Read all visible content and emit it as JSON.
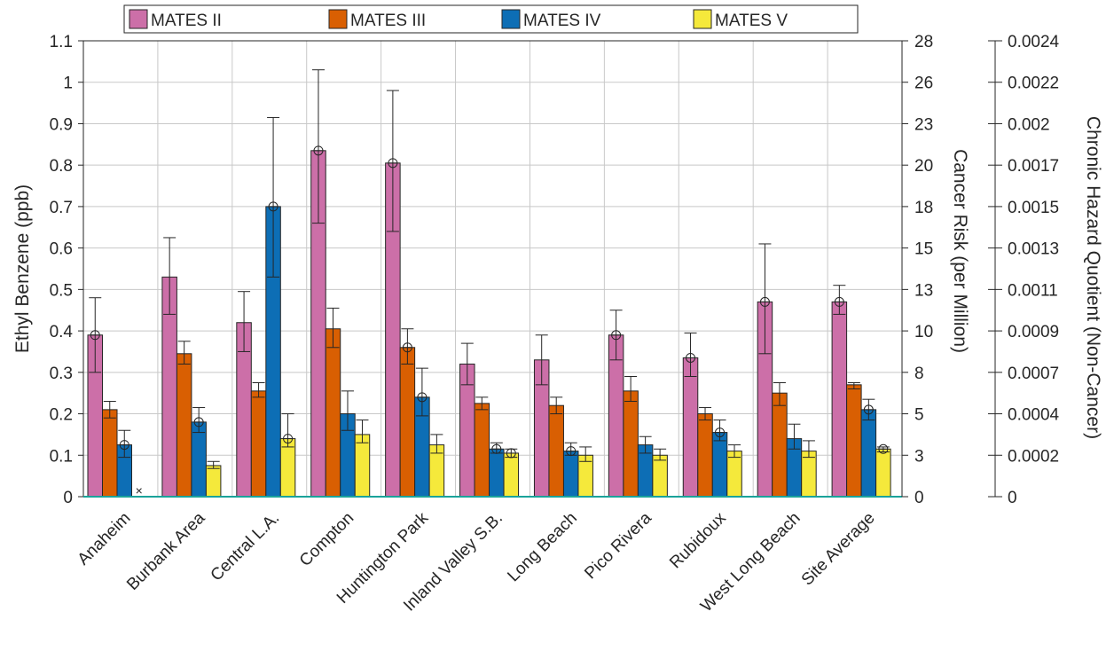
{
  "chart_data": {
    "type": "bar",
    "title": "",
    "categories": [
      "Anaheim",
      "Burbank Area",
      "Central L.A.",
      "Compton",
      "Huntington Park",
      "Inland Valley S.B.",
      "Long Beach",
      "Pico Rivera",
      "Rubidoux",
      "West Long Beach",
      "Site Average"
    ],
    "series": [
      {
        "name": "MATES II",
        "color": "#cc6fa8",
        "values": [
          0.39,
          0.53,
          0.42,
          0.835,
          0.805,
          0.32,
          0.33,
          0.39,
          0.335,
          0.47,
          0.47
        ],
        "err_low": [
          0.3,
          0.44,
          0.35,
          0.66,
          0.64,
          0.27,
          0.27,
          0.33,
          0.29,
          0.345,
          0.44
        ],
        "err_high": [
          0.48,
          0.625,
          0.495,
          1.03,
          0.98,
          0.37,
          0.39,
          0.45,
          0.395,
          0.61,
          0.51
        ],
        "marker": [
          0.39,
          null,
          null,
          0.835,
          0.805,
          null,
          null,
          0.39,
          0.335,
          0.47,
          0.47
        ]
      },
      {
        "name": "MATES III",
        "color": "#d95f02",
        "values": [
          0.21,
          0.345,
          0.255,
          0.405,
          0.36,
          0.225,
          0.22,
          0.255,
          0.2,
          0.25,
          0.27
        ],
        "err_low": [
          0.19,
          0.32,
          0.24,
          0.36,
          0.32,
          0.21,
          0.2,
          0.23,
          0.185,
          0.22,
          0.26
        ],
        "err_high": [
          0.23,
          0.375,
          0.275,
          0.455,
          0.405,
          0.24,
          0.24,
          0.29,
          0.215,
          0.275,
          0.275
        ],
        "marker": [
          null,
          null,
          null,
          null,
          0.36,
          null,
          null,
          null,
          null,
          null,
          null
        ]
      },
      {
        "name": "MATES IV",
        "color": "#0d6eb5",
        "values": [
          0.125,
          0.18,
          0.7,
          0.2,
          0.24,
          0.115,
          0.11,
          0.125,
          0.155,
          0.14,
          0.21
        ],
        "err_low": [
          0.095,
          0.155,
          0.53,
          0.16,
          0.195,
          0.105,
          0.1,
          0.105,
          0.135,
          0.115,
          0.185
        ],
        "err_high": [
          0.16,
          0.215,
          0.915,
          0.255,
          0.31,
          0.13,
          0.13,
          0.145,
          0.185,
          0.175,
          0.235
        ],
        "marker": [
          0.125,
          0.18,
          0.7,
          null,
          0.24,
          0.115,
          0.11,
          null,
          0.155,
          null,
          0.21
        ]
      },
      {
        "name": "MATES V",
        "color": "#f5e93b",
        "values": [
          null,
          0.075,
          0.14,
          0.15,
          0.125,
          0.105,
          0.1,
          0.1,
          0.11,
          0.11,
          0.115
        ],
        "err_low": [
          null,
          0.068,
          0.12,
          0.13,
          0.105,
          0.095,
          0.085,
          0.088,
          0.095,
          0.095,
          0.108
        ],
        "err_high": [
          null,
          0.085,
          0.2,
          0.185,
          0.15,
          0.115,
          0.12,
          0.115,
          0.125,
          0.135,
          0.12
        ],
        "marker": [
          null,
          null,
          0.14,
          null,
          null,
          0.105,
          null,
          null,
          null,
          null,
          0.115
        ]
      }
    ],
    "missing_markers": [
      {
        "category": "Anaheim",
        "series": "MATES V",
        "symbol": "×"
      }
    ],
    "ylabel": "Ethyl Benzene (ppb)",
    "ylim": [
      0,
      1.1
    ],
    "yticks": [
      0,
      0.1,
      0.2,
      0.3,
      0.4,
      0.5,
      0.6,
      0.7,
      0.8,
      0.9,
      1,
      1.1
    ],
    "y2label": "Cancer Risk (per Million)",
    "y2ticks": [
      {
        "label": "28",
        "at": 1.1
      },
      {
        "label": "26",
        "at": 1.0
      },
      {
        "label": "23",
        "at": 0.9
      },
      {
        "label": "20",
        "at": 0.8
      },
      {
        "label": "18",
        "at": 0.7
      },
      {
        "label": "15",
        "at": 0.6
      },
      {
        "label": "13",
        "at": 0.5
      },
      {
        "label": "10",
        "at": 0.4
      },
      {
        "label": "8",
        "at": 0.3
      },
      {
        "label": "5",
        "at": 0.2
      },
      {
        "label": "3",
        "at": 0.1
      },
      {
        "label": "0",
        "at": 0
      }
    ],
    "y3label": "Chronic Hazard Quotient (Non-Cancer)",
    "y3ticks": [
      {
        "label": "0.0024",
        "at": 1.1
      },
      {
        "label": "0.0022",
        "at": 1.0
      },
      {
        "label": "0.002",
        "at": 0.9
      },
      {
        "label": "0.0017",
        "at": 0.8
      },
      {
        "label": "0.0015",
        "at": 0.7
      },
      {
        "label": "0.0013",
        "at": 0.6
      },
      {
        "label": "0.0011",
        "at": 0.5
      },
      {
        "label": "0.0009",
        "at": 0.4
      },
      {
        "label": "0.0007",
        "at": 0.3
      },
      {
        "label": "0.0004",
        "at": 0.2
      },
      {
        "label": "0.0002",
        "at": 0.1
      },
      {
        "label": "0",
        "at": 0
      }
    ],
    "legend": {
      "placement": "top",
      "orientation": "horizontal"
    },
    "grid": true,
    "zero_line_color": "#1aa39a"
  }
}
